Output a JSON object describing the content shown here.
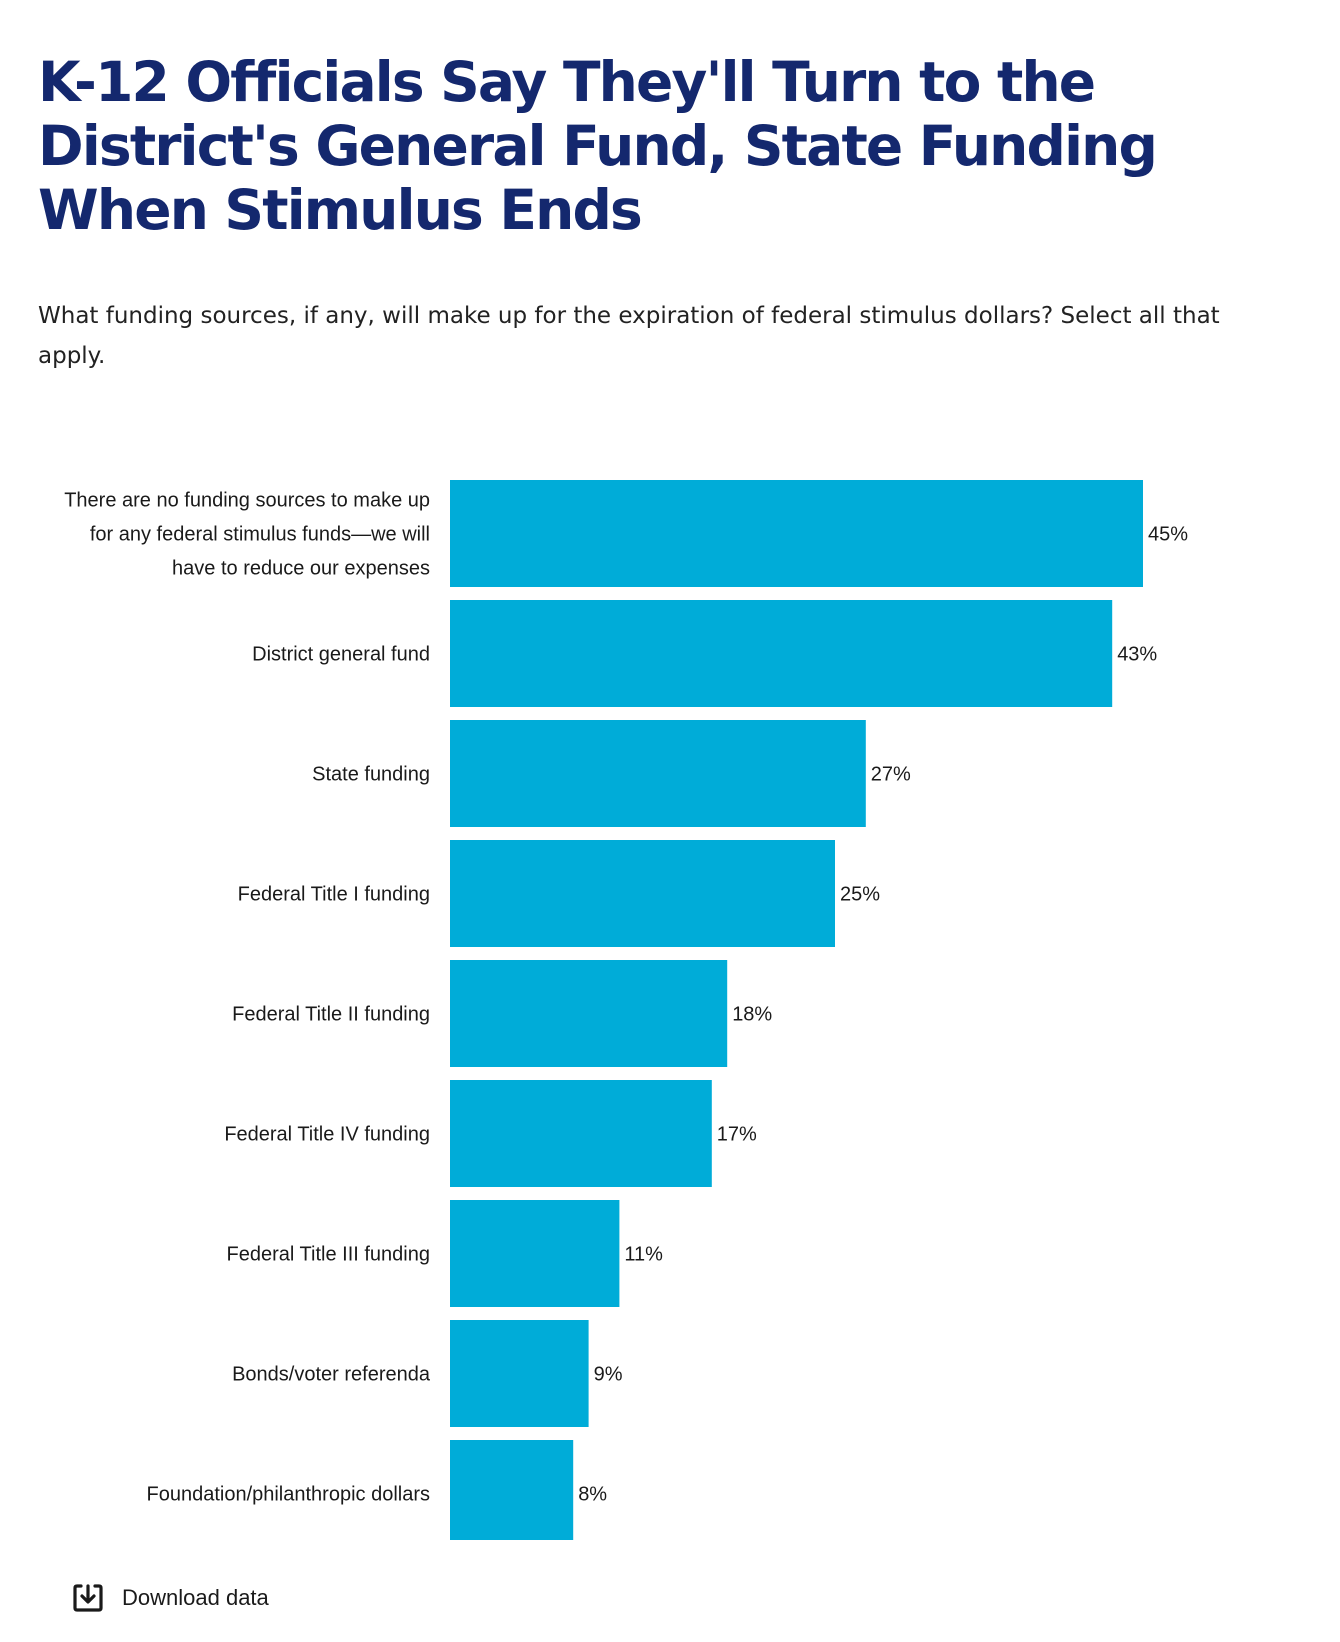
{
  "chart_data": {
    "type": "bar",
    "orientation": "horizontal",
    "title": "K-12 Officials Say They'll Turn to the District's General Fund, State Funding When Stimulus Ends",
    "subtitle": "What funding sources, if any, will make up for the expiration of federal stimulus dollars? Select all that apply.",
    "categories": [
      "There are no funding sources to make up for any federal stimulus funds—we will have to reduce our expenses",
      "District general fund",
      "State funding",
      "Federal Title I funding",
      "Federal Title II funding",
      "Federal Title IV funding",
      "Federal Title III funding",
      "Bonds/voter referenda",
      "Foundation/philanthropic dollars"
    ],
    "values": [
      45,
      43,
      27,
      25,
      18,
      17,
      11,
      9,
      8
    ],
    "value_labels": [
      "45%",
      "43%",
      "27%",
      "25%",
      "18%",
      "17%",
      "11%",
      "9%",
      "8%"
    ],
    "unit": "%",
    "bar_color": "#00acd8",
    "grid": false,
    "legend": false
  },
  "download": {
    "label": "Download data",
    "icon": "download-icon"
  },
  "colors": {
    "title": "#14286e",
    "bar": "#00acd8"
  }
}
